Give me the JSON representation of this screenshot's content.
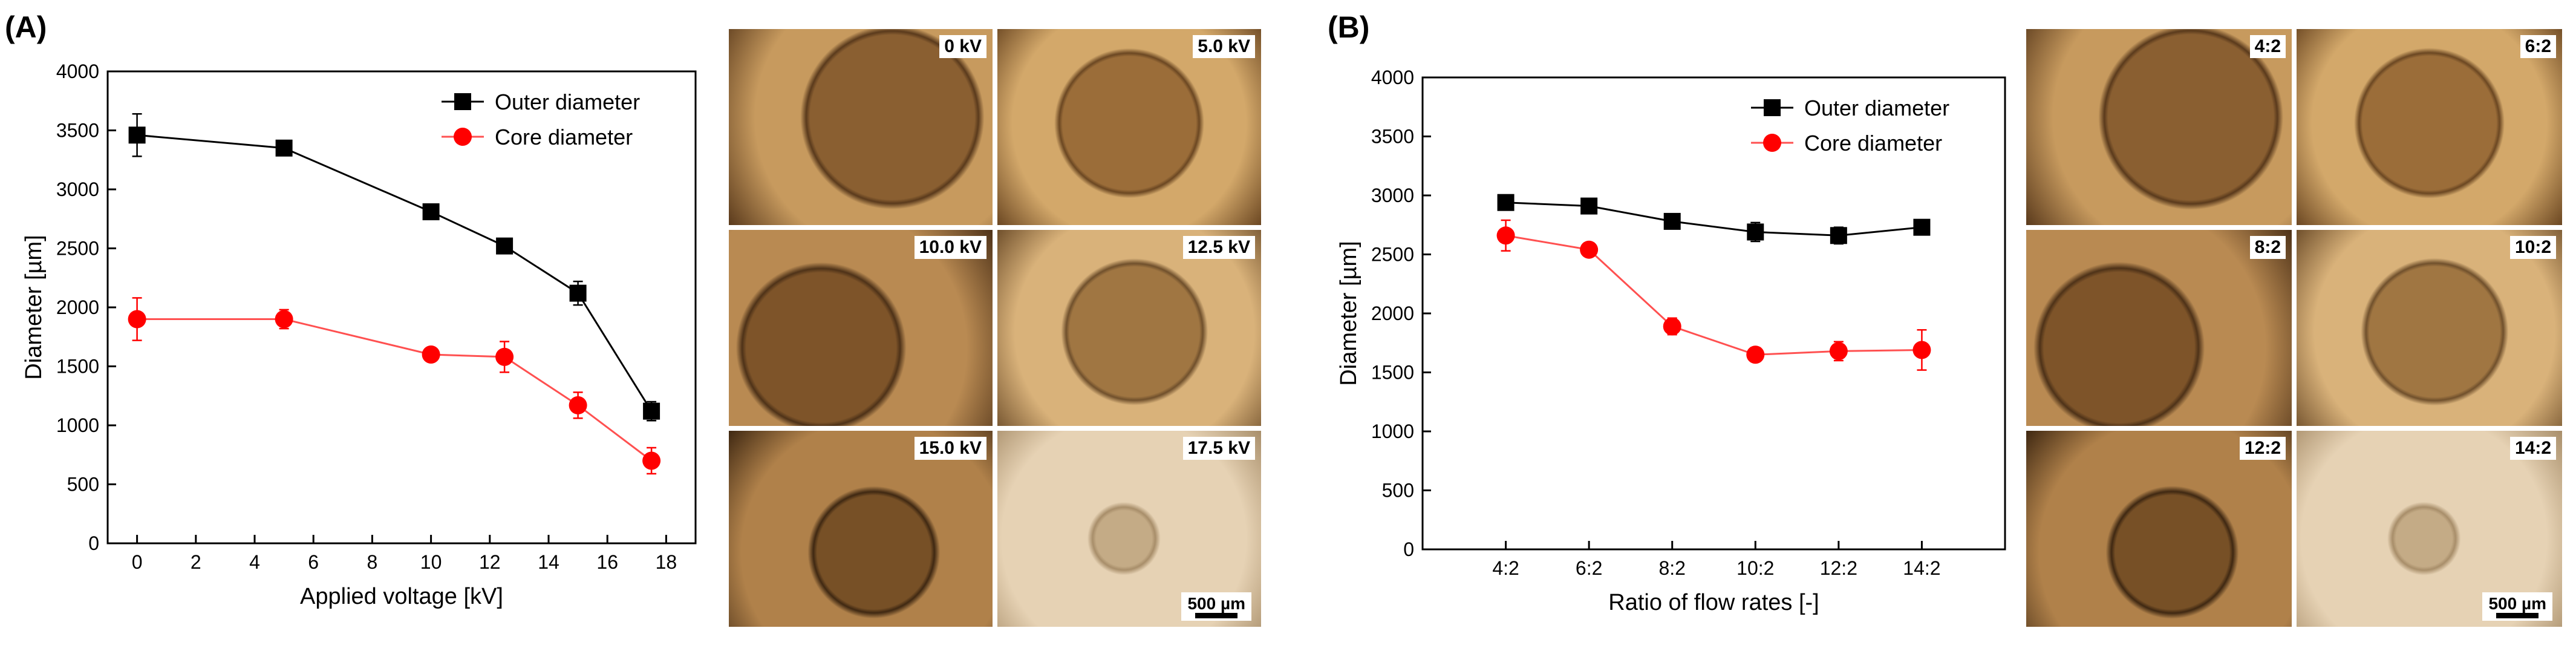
{
  "figure": {
    "panel_a_label": "(A)",
    "panel_b_label": "(B)"
  },
  "colors": {
    "outer": "#000000",
    "core": "#ff0000",
    "core_line": "#ff5050"
  },
  "chart_data": [
    {
      "type": "line",
      "title": "",
      "xlabel": "Applied voltage [kV]",
      "ylabel": "Diameter [µm]",
      "xlim": [
        -1,
        19
      ],
      "ylim": [
        0,
        4000
      ],
      "xticks": [
        0,
        2,
        4,
        6,
        8,
        10,
        12,
        14,
        16,
        18
      ],
      "yticks": [
        0,
        500,
        1000,
        1500,
        2000,
        2500,
        3000,
        3500,
        4000
      ],
      "legend": "top-right",
      "grid": false,
      "x": [
        0,
        5,
        10,
        12.5,
        15,
        17.5
      ],
      "series": [
        {
          "name": "Outer diameter",
          "marker": "square",
          "values": [
            3460,
            3350,
            2810,
            2520,
            2120,
            1120
          ],
          "error": [
            180,
            60,
            30,
            50,
            100,
            80
          ]
        },
        {
          "name": "Core diameter",
          "marker": "circle",
          "values": [
            1900,
            1900,
            1600,
            1580,
            1170,
            700
          ],
          "error": [
            180,
            80,
            40,
            130,
            110,
            110
          ]
        }
      ]
    },
    {
      "type": "line",
      "title": "",
      "xlabel": "Ratio of flow rates [-]",
      "ylabel": "Diameter [µm]",
      "ylim": [
        0,
        4000
      ],
      "yticks": [
        0,
        500,
        1000,
        1500,
        2000,
        2500,
        3000,
        3500,
        4000
      ],
      "legend": "top-right",
      "grid": false,
      "categories": [
        "4:2",
        "6:2",
        "8:2",
        "10:2",
        "12:2",
        "14:2"
      ],
      "series": [
        {
          "name": "Outer diameter",
          "marker": "square",
          "values": [
            2940,
            2910,
            2780,
            2690,
            2660,
            2730
          ],
          "error": [
            60,
            50,
            50,
            80,
            70,
            40
          ]
        },
        {
          "name": "Core diameter",
          "marker": "circle",
          "values": [
            2660,
            2540,
            1890,
            1650,
            1680,
            1690
          ],
          "error": [
            130,
            40,
            70,
            60,
            80,
            170
          ]
        }
      ]
    }
  ],
  "micrographs_a": [
    {
      "label": "0 kV"
    },
    {
      "label": "5.0 kV"
    },
    {
      "label": "10.0 kV"
    },
    {
      "label": "12.5 kV"
    },
    {
      "label": "15.0 kV"
    },
    {
      "label": "17.5 kV"
    }
  ],
  "micrographs_b": [
    {
      "label": "4:2"
    },
    {
      "label": "6:2"
    },
    {
      "label": "8:2"
    },
    {
      "label": "10:2"
    },
    {
      "label": "12:2"
    },
    {
      "label": "14:2"
    }
  ],
  "scalebar_a": "500 µm",
  "scalebar_b": "500 µm"
}
